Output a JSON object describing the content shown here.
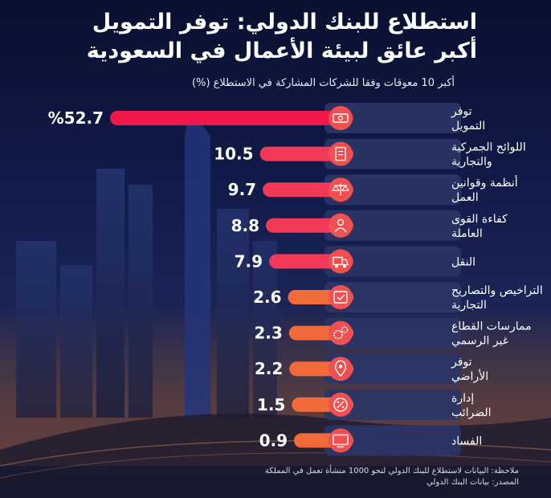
{
  "title_line1": "استطلاع للبنك الدولي: توفر التمويل",
  "title_line2": "أكبر عائق لبيئة الأعمال في السعودية",
  "colors": {
    "bar_high": "#f0184a",
    "bar_mid": "#f23a58",
    "bar_low": "#f26a3a",
    "label_box": "#2a3566",
    "icon_bg": "#f05050"
  },
  "chart_data": {
    "type": "bar",
    "orientation": "horizontal",
    "subtitle": "أكبر 10 معوقات وفقا للشركات المشاركة في الاستطلاع (%)",
    "categories": [
      [
        "توفر",
        "التمويل"
      ],
      [
        "اللوائح الجمركية",
        "والتجارية"
      ],
      [
        "أنظمة وقوانين",
        "العمل"
      ],
      [
        "كفاءة القوى",
        "العاملة"
      ],
      [
        "النقل"
      ],
      [
        "التراخيص والتصاريح",
        "التجارية"
      ],
      [
        "ممارسات القطاع",
        "غير الرسمي"
      ],
      [
        "توفر",
        "الأراضي"
      ],
      [
        "إدارة",
        "الضرائب"
      ],
      [
        "الفساد"
      ]
    ],
    "values": [
      52.7,
      10.5,
      9.7,
      8.8,
      7.9,
      2.6,
      2.3,
      2.2,
      1.5,
      0.9
    ],
    "value_labels": [
      "%52.7",
      "10.5",
      "9.7",
      "8.8",
      "7.9",
      "2.6",
      "2.3",
      "2.2",
      "1.5",
      "0.9"
    ],
    "icons": [
      "money-icon",
      "document-icon",
      "scales-icon",
      "worker-icon",
      "truck-icon",
      "permit-icon",
      "gears-icon",
      "location-pin-icon",
      "tax-icon",
      "monitor-icon"
    ],
    "xlim": [
      0,
      52.7
    ]
  },
  "footer": {
    "note": "ملاحظة: البيانات لاستطلاع للبنك الدولي لنحو 1000 منشأة تعمل في المملكة",
    "source": "المصدر: بيانات البنك الدولي"
  }
}
